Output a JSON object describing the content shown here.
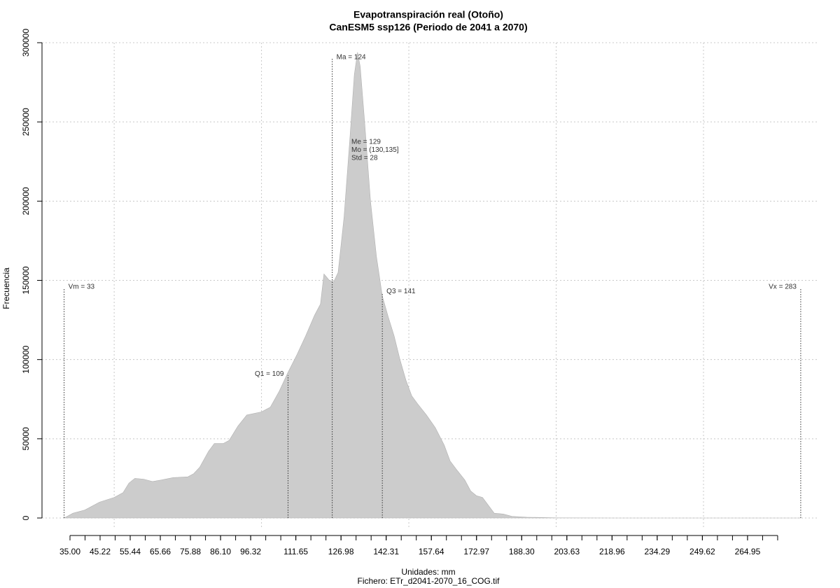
{
  "chart_data": {
    "type": "density",
    "title": "Evapotranspiración real (Otoño)",
    "subtitle": "CanESM5 ssp126 (Periodo de 2041 a 2070)",
    "x_label": "Unidades: mm",
    "caption": "Fichero: ETr_d2041-2070_16_COG.tif",
    "y_label": "Frecuencia",
    "color": "#cccccc",
    "x": [
      33,
      36,
      40,
      45,
      50,
      53,
      55,
      57,
      60,
      63,
      66,
      70,
      75,
      77,
      79,
      82,
      84,
      87,
      89,
      92,
      95,
      100,
      103,
      106,
      109,
      112,
      115,
      118,
      120,
      121.2,
      123,
      124.5,
      126,
      128,
      130,
      131.5,
      132.6,
      133.5,
      135,
      137,
      139,
      141,
      143,
      145,
      147,
      149,
      151,
      153,
      156,
      159,
      162,
      164,
      166,
      169,
      171,
      173,
      175,
      177,
      179,
      182,
      185,
      190,
      200,
      220,
      283
    ],
    "values": [
      0,
      3000,
      5000,
      10000,
      13000,
      16000,
      22000,
      25000,
      24500,
      23000,
      24000,
      25500,
      26000,
      28000,
      32000,
      42000,
      47000,
      47000,
      49000,
      58000,
      65000,
      67000,
      70000,
      80000,
      92000,
      103000,
      115000,
      128000,
      135000,
      154000,
      150000,
      149000,
      155000,
      190000,
      240000,
      280000,
      294000,
      285000,
      250000,
      200000,
      165000,
      140000,
      127000,
      115000,
      100000,
      87000,
      77000,
      72000,
      65000,
      57000,
      46000,
      36000,
      31000,
      24000,
      17000,
      14000,
      13000,
      8000,
      3000,
      2500,
      1000,
      500,
      100,
      0,
      0
    ],
    "xlim": [
      25.5,
      289.2
    ],
    "ylim": [
      0,
      300000
    ],
    "yticks": [
      0,
      50000,
      100000,
      150000,
      200000,
      250000,
      300000
    ],
    "xgrid": [
      50,
      100,
      150,
      200,
      250
    ],
    "xticks": [
      {
        "value": 35,
        "label": "35.00"
      },
      {
        "value": 45.22,
        "label": "45.22"
      },
      {
        "value": 55.44,
        "label": "55.44"
      },
      {
        "value": 65.66,
        "label": "65.66"
      },
      {
        "value": 75.88,
        "label": "75.88"
      },
      {
        "value": 86.1,
        "label": "86.10"
      },
      {
        "value": 96.32,
        "label": "96.32"
      },
      {
        "value": 111.65,
        "label": "111.65"
      },
      {
        "value": 126.98,
        "label": "126.98"
      },
      {
        "value": 142.31,
        "label": "142.31"
      },
      {
        "value": 157.64,
        "label": "157.64"
      },
      {
        "value": 172.97,
        "label": "172.97"
      },
      {
        "value": 188.3,
        "label": "188.30"
      },
      {
        "value": 203.63,
        "label": "203.63"
      },
      {
        "value": 218.96,
        "label": "218.96"
      },
      {
        "value": 234.29,
        "label": "234.29"
      },
      {
        "value": 249.62,
        "label": "249.62"
      },
      {
        "value": 264.95,
        "label": "264.95"
      }
    ],
    "xminorticks": [
      35,
      40.11,
      45.22,
      50.33,
      55.44,
      60.55,
      65.66,
      70.77,
      75.88,
      80.99,
      86.1,
      91.21,
      96.32,
      101.43,
      106.54,
      111.65,
      116.76,
      121.87,
      126.98,
      132.09,
      137.2,
      142.31,
      147.42,
      152.53,
      157.64,
      162.75,
      167.86,
      172.97,
      178.08,
      183.19,
      188.3,
      193.41,
      198.52,
      203.63,
      208.74,
      213.85,
      218.96,
      224.07,
      229.18,
      234.29,
      239.4,
      244.51,
      249.62,
      254.73,
      259.84,
      264.95,
      270.06,
      275.17
    ],
    "stat_lines": [
      {
        "label": "Vm = 33",
        "value": 33
      },
      {
        "label": "Q1 = 109",
        "value": 109
      },
      {
        "label": "Ma = 124",
        "value": 124
      },
      {
        "label": "Q3 = 141",
        "value": 141
      },
      {
        "label": "Vx = 283",
        "value": 283
      }
    ],
    "stat_text": [
      "Me = 129",
      "Mo = (130,135]",
      "Std = 28"
    ]
  }
}
